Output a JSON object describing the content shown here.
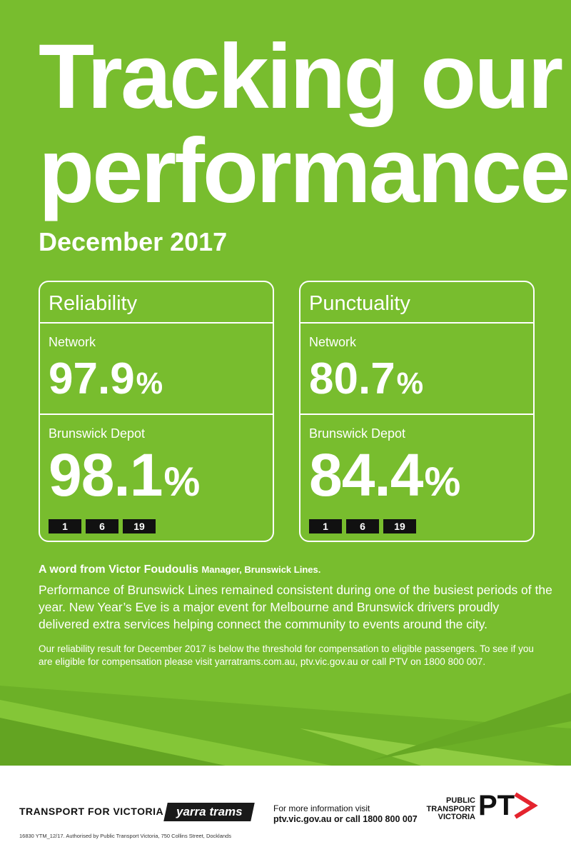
{
  "colors": {
    "primary_green": "#78bd2e",
    "stripe_light": "#8dcb3f",
    "stripe_dark": "#68a825",
    "footer_bg": "#ffffff",
    "route_badge_bg": "#111111",
    "ptv_red": "#e4242e"
  },
  "header": {
    "title_line1": "Tracking our",
    "title_line2": "performance",
    "subtitle": "December 2017"
  },
  "reliability": {
    "heading": "Reliability",
    "network_label": "Network",
    "network_value": "97.9",
    "network_unit": "%",
    "depot_label": "Brunswick Depot",
    "depot_value": "98.1",
    "depot_unit": "%",
    "routes": [
      "1",
      "6",
      "19"
    ]
  },
  "punctuality": {
    "heading": "Punctuality",
    "network_label": "Network",
    "network_value": "80.7",
    "network_unit": "%",
    "depot_label": "Brunswick Depot",
    "depot_value": "84.4",
    "depot_unit": "%",
    "routes": [
      "1",
      "6",
      "19"
    ]
  },
  "quote": {
    "heading": "A word from Victor Foudoulis",
    "role": "Manager, Brunswick Lines.",
    "body": "Performance of Brunswick Lines remained consistent during one of the busiest periods of the year. New Year’s Eve is a major event for Melbourne and Brunswick drivers proudly delivered extra services helping connect the community to events around the city."
  },
  "compensation_text": "Our reliability result for December 2017 is below the threshold for compensation to eligible passengers. To see if you are eligible for compensation please visit yarratrams.com.au, ptv.vic.gov.au or call PTV on 1800 800 007.",
  "footer": {
    "tfv_logo": "TRANSPORT FOR VICTORIA",
    "yarra_logo": "yarra trams",
    "info_line1": "For more information visit",
    "info_line2": "ptv.vic.gov.au or call 1800 800 007",
    "ptv_line1": "PUBLIC",
    "ptv_line2": "TRANSPORT",
    "ptv_line3": "VICTORIA",
    "ptv_mark": "PT",
    "authorised": "16830 YTM_12/17. Authorised by Public Transport Victoria, 750 Collins Street, Docklands"
  }
}
